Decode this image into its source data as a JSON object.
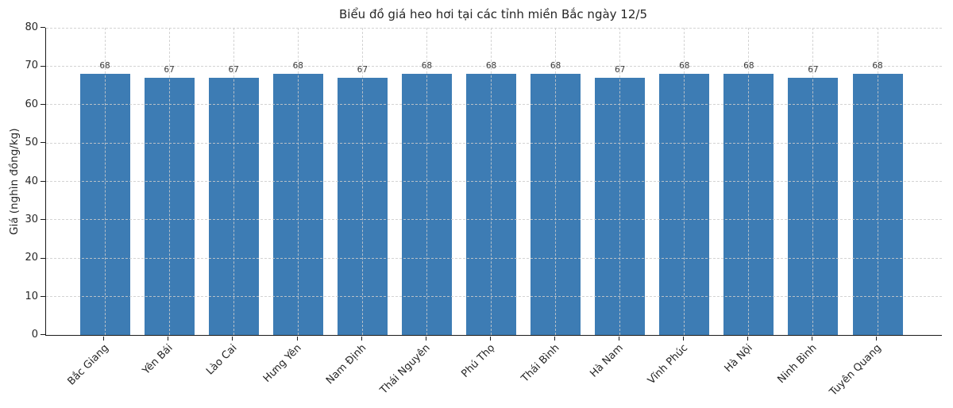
{
  "chart_data": {
    "type": "bar",
    "title": "Biểu đồ giá heo hơi tại các tỉnh miền Bắc ngày 12/5",
    "categories": [
      "Bắc Giang",
      "Yên Bái",
      "Lào Cai",
      "Hưng Yên",
      "Nam Định",
      "Thái Nguyên",
      "Phú Thọ",
      "Thái Bình",
      "Hà Nam",
      "Vĩnh Phúc",
      "Hà Nội",
      "Ninh Bình",
      "Tuyên Quang"
    ],
    "values": [
      68,
      67,
      67,
      68,
      67,
      68,
      68,
      68,
      67,
      68,
      68,
      67,
      68
    ],
    "xlabel": "",
    "ylabel": "Giá (nghìn đồng/kg)",
    "ylim": [
      0,
      80
    ],
    "yticks": [
      0,
      10,
      20,
      30,
      40,
      50,
      60,
      70,
      80
    ],
    "grid": true,
    "grid_style": "dashed",
    "legend": null,
    "bar_color": "#3d7cb4",
    "axis_color": "#1c1c1c",
    "text_color": "#262626"
  }
}
